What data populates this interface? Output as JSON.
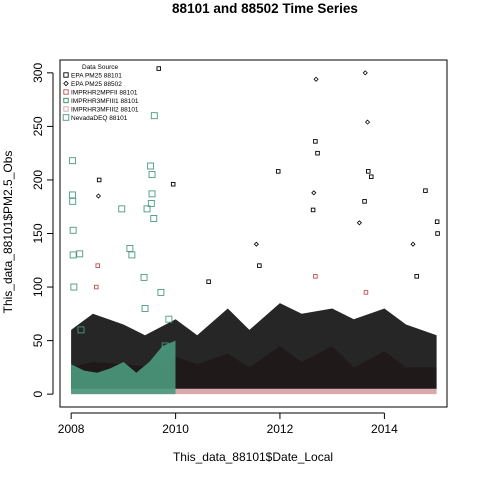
{
  "chart_data": {
    "type": "scatter",
    "title": "88101 and 88502 Time Series",
    "xlabel": "This_data_88101$Date_Local",
    "ylabel": "This_data_88101$PM2.5_Obs",
    "xlim": [
      "2007-10-15",
      "2015-03-15"
    ],
    "ylim": [
      -12,
      312
    ],
    "x_ticks": [
      {
        "label": "2008",
        "date": "2008-01-01"
      },
      {
        "label": "2010",
        "date": "2010-01-01"
      },
      {
        "label": "2012",
        "date": "2012-01-01"
      },
      {
        "label": "2014",
        "date": "2014-01-01"
      }
    ],
    "y_ticks": [
      0,
      50,
      100,
      150,
      200,
      250,
      300
    ],
    "grid": false,
    "legend": {
      "title": "Data Source",
      "position": "top-left",
      "entries": [
        {
          "label": "EPA  PM25 88101",
          "color": "#000000",
          "marker": "square"
        },
        {
          "label": "EPA  PM25 88502",
          "color": "#000000",
          "marker": "diamond"
        },
        {
          "label": "IMPRHR2MPFII 88101",
          "color": "#c0504d",
          "marker": "square"
        },
        {
          "label": "IMPRHR3MFIII1 88101",
          "color": "#2e8b57",
          "marker": "square"
        },
        {
          "label": "IMPRHR3MFIII2 88101",
          "color": "#d4a0a0",
          "marker": "square"
        },
        {
          "label": "NevadaDEQ 88101",
          "color": "#4a9a7e",
          "marker": "square"
        }
      ]
    },
    "series": [
      {
        "name": "EPA  PM25 88101",
        "color": "#000000",
        "marker": "square",
        "points": [
          {
            "x": "2008-07-15",
            "y": 200
          },
          {
            "x": "2009-09-05",
            "y": 304
          },
          {
            "x": "2009-12-15",
            "y": 196
          },
          {
            "x": "2011-12-20",
            "y": 208
          },
          {
            "x": "2012-09-05",
            "y": 236
          },
          {
            "x": "2012-09-20",
            "y": 225
          },
          {
            "x": "2013-09-10",
            "y": 208
          },
          {
            "x": "2013-10-01",
            "y": 203
          },
          {
            "x": "2014-10-15",
            "y": 190
          },
          {
            "x": "2015-01-05",
            "y": 161
          },
          {
            "x": "2015-01-08",
            "y": 150
          },
          {
            "x": "2012-08-20",
            "y": 172
          },
          {
            "x": "2013-08-15",
            "y": 180
          },
          {
            "x": "2011-08-10",
            "y": 120
          },
          {
            "x": "2010-08-20",
            "y": 105
          },
          {
            "x": "2014-08-15",
            "y": 110
          }
        ]
      },
      {
        "name": "EPA  PM25 88502",
        "color": "#000000",
        "marker": "diamond",
        "points": [
          {
            "x": "2008-07-10",
            "y": 185
          },
          {
            "x": "2012-09-10",
            "y": 294
          },
          {
            "x": "2013-08-20",
            "y": 300
          },
          {
            "x": "2013-09-05",
            "y": 254
          },
          {
            "x": "2012-08-25",
            "y": 188
          },
          {
            "x": "2011-07-20",
            "y": 140
          },
          {
            "x": "2014-07-20",
            "y": 140
          },
          {
            "x": "2013-07-10",
            "y": 160
          }
        ]
      },
      {
        "name": "IMPRHR2MPFII 88101",
        "color": "#c0504d",
        "marker": "square",
        "points": [
          {
            "x": "2008-07-05",
            "y": 120
          },
          {
            "x": "2008-06-25",
            "y": 100
          },
          {
            "x": "2012-09-05",
            "y": 110
          },
          {
            "x": "2013-08-25",
            "y": 95
          }
        ]
      },
      {
        "name": "NevadaDEQ 88101",
        "color": "#4a9a7e",
        "marker": "square",
        "points": [
          {
            "x": "2008-01-10",
            "y": 218
          },
          {
            "x": "2008-01-10",
            "y": 186
          },
          {
            "x": "2008-01-12",
            "y": 180
          },
          {
            "x": "2008-01-15",
            "y": 153
          },
          {
            "x": "2008-01-15",
            "y": 130
          },
          {
            "x": "2008-03-01",
            "y": 131
          },
          {
            "x": "2008-01-20",
            "y": 100
          },
          {
            "x": "2008-03-10",
            "y": 60
          },
          {
            "x": "2008-12-20",
            "y": 173
          },
          {
            "x": "2009-02-15",
            "y": 136
          },
          {
            "x": "2009-03-01",
            "y": 130
          },
          {
            "x": "2009-06-15",
            "y": 173
          },
          {
            "x": "2009-08-05",
            "y": 260
          },
          {
            "x": "2009-07-10",
            "y": 213
          },
          {
            "x": "2009-07-20",
            "y": 205
          },
          {
            "x": "2009-07-20",
            "y": 187
          },
          {
            "x": "2009-07-15",
            "y": 178
          },
          {
            "x": "2009-08-01",
            "y": 164
          },
          {
            "x": "2009-05-25",
            "y": 109
          },
          {
            "x": "2009-09-20",
            "y": 95
          },
          {
            "x": "2009-11-15",
            "y": 70
          },
          {
            "x": "2009-10-20",
            "y": 45
          },
          {
            "x": "2009-06-01",
            "y": 80
          }
        ]
      }
    ],
    "bands": [
      {
        "name": "IMPRHR3MFIII2 88101",
        "color": "#d4a0a0",
        "x": [
          "2008-01-01",
          "2008-06-01",
          "2009-01-01",
          "2009-06-01",
          "2010-01-01",
          "2010-06-01",
          "2011-01-01",
          "2011-06-01",
          "2012-01-01",
          "2012-06-01",
          "2013-01-01",
          "2013-06-01",
          "2014-01-01",
          "2014-06-01",
          "2015-01-01"
        ],
        "low": [
          0,
          0,
          0,
          0,
          0,
          0,
          0,
          0,
          0,
          0,
          0,
          0,
          0,
          0,
          0
        ],
        "high": [
          25,
          30,
          28,
          26,
          35,
          28,
          38,
          25,
          45,
          30,
          45,
          25,
          40,
          25,
          25
        ]
      },
      {
        "name": "EPA  PM25 88101",
        "color": "#000000",
        "x": [
          "2008-01-01",
          "2008-06-01",
          "2009-01-01",
          "2009-06-01",
          "2010-01-01",
          "2010-06-01",
          "2011-01-01",
          "2011-06-01",
          "2012-01-01",
          "2012-06-01",
          "2013-01-01",
          "2013-06-01",
          "2014-01-01",
          "2014-06-01",
          "2015-01-01"
        ],
        "low": [
          5,
          5,
          5,
          5,
          5,
          5,
          5,
          5,
          5,
          5,
          5,
          5,
          5,
          5,
          5
        ],
        "high": [
          60,
          75,
          65,
          55,
          70,
          55,
          80,
          60,
          85,
          75,
          80,
          70,
          80,
          65,
          55
        ]
      },
      {
        "name": "NevadaDEQ 88101",
        "color": "#4a9a7e",
        "x": [
          "2008-01-01",
          "2008-04-01",
          "2008-07-01",
          "2008-10-01",
          "2009-01-01",
          "2009-04-01",
          "2009-07-01",
          "2009-10-01",
          "2009-12-31"
        ],
        "low": [
          0,
          0,
          0,
          0,
          0,
          0,
          0,
          0,
          0
        ],
        "high": [
          28,
          22,
          20,
          24,
          30,
          20,
          30,
          45,
          50
        ]
      }
    ]
  }
}
